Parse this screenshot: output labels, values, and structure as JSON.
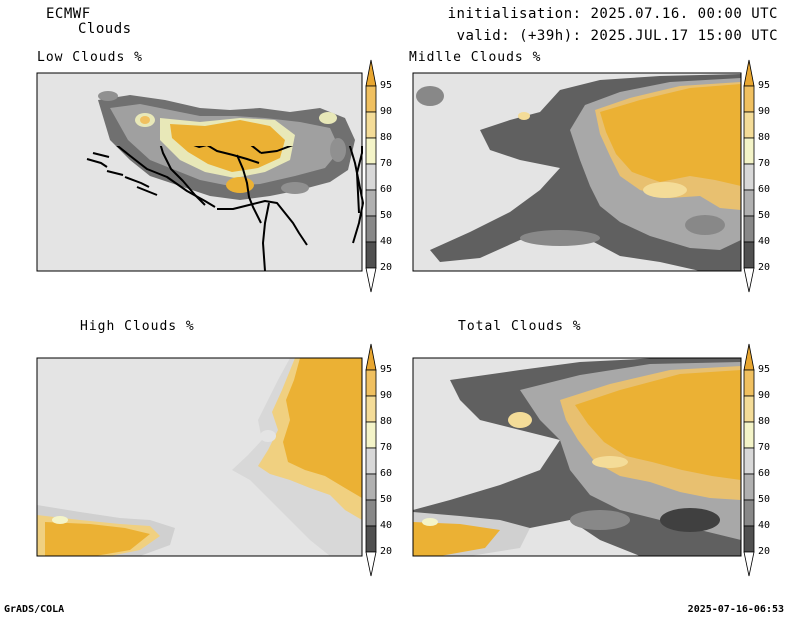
{
  "header": {
    "model": "ECMWF",
    "field": "Clouds",
    "init": "initialisation: 2025.07.16. 00:00 UTC",
    "valid": "valid: (+39h): 2025.JUL.17 15:00 UTC"
  },
  "panels": [
    {
      "title": "Low Clouds %"
    },
    {
      "title": "Midlle Clouds %"
    },
    {
      "title": "High Clouds %"
    },
    {
      "title": "Total Clouds %"
    }
  ],
  "colorbar": {
    "ticks": [
      "95",
      "90",
      "80",
      "70",
      "60",
      "50",
      "40",
      "20"
    ],
    "colors": [
      "#e8a630",
      "#f0c060",
      "#f4dc98",
      "#f4f4c8",
      "#d8d8d8",
      "#b0b0b0",
      "#888888",
      "#606060",
      "#404040",
      "#ffffff"
    ]
  },
  "footer": {
    "left": "GrADS/COLA",
    "right": "2025-07-16-06:53"
  }
}
